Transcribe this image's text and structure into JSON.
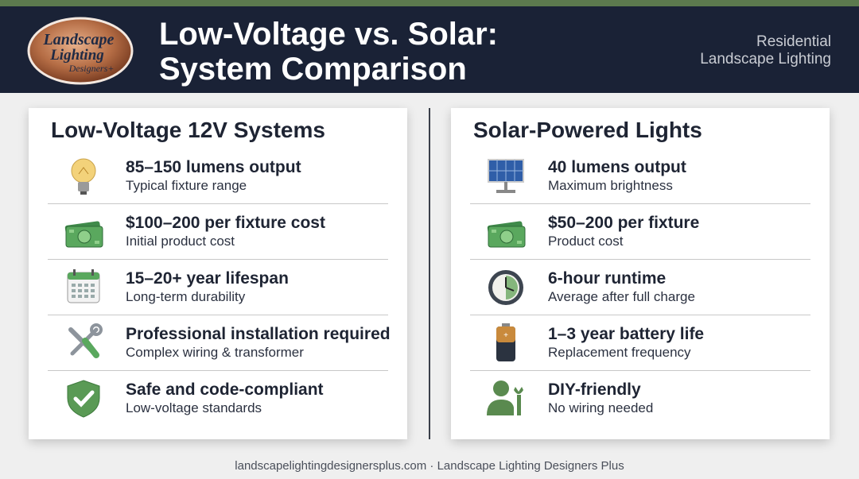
{
  "header": {
    "logo": [
      "Landscape",
      "Lighting",
      "Designers+"
    ],
    "title": [
      "Low-Voltage vs. Solar:",
      "System Comparison"
    ],
    "tagline": [
      "Residential",
      "Landscape Lighting"
    ]
  },
  "panels": [
    {
      "heading": "Low-Voltage 12V Systems",
      "items": [
        {
          "title": "85–150 lumens output",
          "subtitle": "Typical fixture range"
        },
        {
          "title": "$100–200 per fixture cost",
          "subtitle": "Initial product cost"
        },
        {
          "title": "15–20+ year lifespan",
          "subtitle": "Long-term durability"
        },
        {
          "title": "Professional installation required",
          "subtitle": "Complex wiring & transformer"
        },
        {
          "title": "Safe and code-compliant",
          "subtitle": "Low-voltage standards"
        }
      ]
    },
    {
      "heading": "Solar-Powered Lights",
      "items": [
        {
          "title": "40 lumens output",
          "subtitle": "Maximum brightness"
        },
        {
          "title": "$50–200 per fixture",
          "subtitle": "Product cost"
        },
        {
          "title": "6-hour runtime",
          "subtitle": "Average after full charge"
        },
        {
          "title": "1–3 year battery life",
          "subtitle": "Replacement frequency"
        },
        {
          "title": "DIY-friendly",
          "subtitle": "No wiring needed"
        }
      ]
    }
  ],
  "footer": "landscapelightingdesignersplus.com · Landscape Lighting Designers Plus"
}
